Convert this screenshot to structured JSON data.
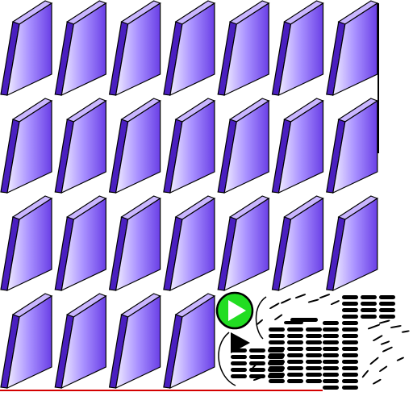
{
  "game": {
    "grid": {
      "rows": 4,
      "cols": 7
    },
    "tiles_present": [
      [
        true,
        true,
        true,
        true,
        true,
        true,
        true
      ],
      [
        true,
        true,
        true,
        true,
        true,
        true,
        true
      ],
      [
        true,
        true,
        true,
        true,
        true,
        true,
        true
      ],
      [
        true,
        true,
        true,
        true,
        false,
        false,
        false
      ]
    ],
    "tile_icon": "purple-domino-tile-icon",
    "play_button_icon": "play-icon",
    "play_indicator_icon": "play-arrow-icon",
    "pile_icon": "domino-pile-icon"
  },
  "colors": {
    "tile_face_light": "#f0ecff",
    "tile_face_mid": "#a890ff",
    "tile_face_dark": "#6a3fe6",
    "tile_side": "#4a1fc0",
    "tile_side_light": "#c9b6ff",
    "tile_outline": "#000000",
    "play_button_fill": "#22dd22",
    "play_button_ring": "#000000",
    "play_triangle": "#ffffff",
    "pile_dash": "#000000",
    "floor_line": "#d40000",
    "frame_line": "#000000"
  }
}
